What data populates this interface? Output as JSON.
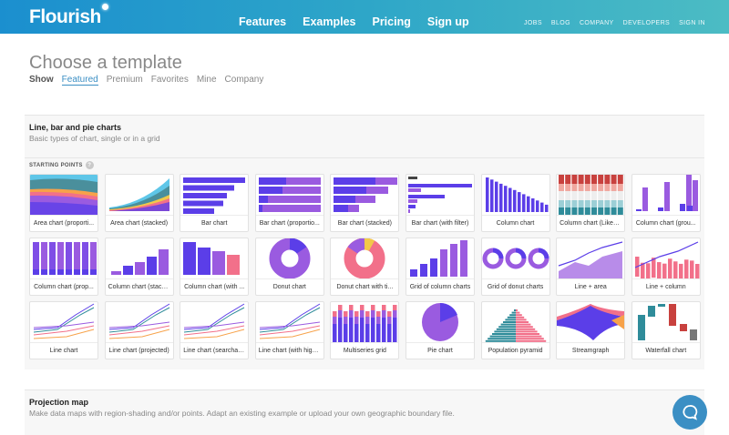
{
  "header": {
    "logo": "Flourish",
    "main_nav": [
      "Features",
      "Examples",
      "Pricing",
      "Sign up"
    ],
    "sub_nav": [
      "JOBS",
      "BLOG",
      "COMPANY",
      "DEVELOPERS",
      "SIGN IN"
    ]
  },
  "page": {
    "title": "Choose a template",
    "show_label": "Show",
    "filters": [
      "Featured",
      "Premium",
      "Favorites",
      "Mine",
      "Company"
    ],
    "active_filter": "Featured"
  },
  "section1": {
    "title": "Line, bar and pie charts",
    "subtitle": "Basic types of chart, single or in a grid",
    "starting_points": "STARTING POINTS",
    "help": "?",
    "templates": [
      {
        "label": "Area chart (proporti...",
        "kind": "area"
      },
      {
        "label": "Area chart (stacked)",
        "kind": "area2"
      },
      {
        "label": "Bar chart",
        "kind": "bar"
      },
      {
        "label": "Bar chart (proportio...",
        "kind": "barprop"
      },
      {
        "label": "Bar chart (stacked)",
        "kind": "barstack"
      },
      {
        "label": "Bar chart (with filter)",
        "kind": "barfilter"
      },
      {
        "label": "Column chart",
        "kind": "col"
      },
      {
        "label": "Column chart (Likert...",
        "kind": "likert"
      },
      {
        "label": "Column chart (grou...",
        "kind": "colgroup"
      },
      {
        "label": "Column chart (prop...",
        "kind": "colprop"
      },
      {
        "label": "Column chart (stack...",
        "kind": "colstack"
      },
      {
        "label": "Column chart (with ...",
        "kind": "colwith"
      },
      {
        "label": "Donut chart",
        "kind": "donut"
      },
      {
        "label": "Donut chart with ti...",
        "kind": "donut2"
      },
      {
        "label": "Grid of column charts",
        "kind": "gridcol"
      },
      {
        "label": "Grid of donut charts",
        "kind": "griddonut"
      },
      {
        "label": "Line + area",
        "kind": "linearea"
      },
      {
        "label": "Line + column",
        "kind": "linecol"
      },
      {
        "label": "Line chart",
        "kind": "line"
      },
      {
        "label": "Line chart (projected)",
        "kind": "line"
      },
      {
        "label": "Line chart (searchable)",
        "kind": "line"
      },
      {
        "label": "Line chart (with high...",
        "kind": "line"
      },
      {
        "label": "Multiseries grid",
        "kind": "multi"
      },
      {
        "label": "Pie chart",
        "kind": "pie"
      },
      {
        "label": "Population pyramid",
        "kind": "pyramid"
      },
      {
        "label": "Streamgraph",
        "kind": "stream"
      },
      {
        "label": "Waterfall chart",
        "kind": "waterfall"
      }
    ]
  },
  "section2": {
    "title": "Projection map",
    "subtitle": "Make data maps with region-shading and/or points. Adapt an existing example or upload your own geographic boundary file."
  },
  "colors": {
    "primary": "#5b3ee8",
    "secondary": "#9a5be0",
    "pink": "#f2708a",
    "teal": "#2f8c9a",
    "accent": "#3b8fc4"
  }
}
